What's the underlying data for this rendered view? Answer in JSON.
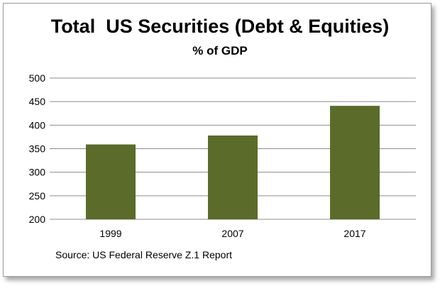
{
  "chart_data": {
    "type": "bar",
    "title": "Total  US Securities (Debt & Equities)",
    "subtitle": "% of GDP",
    "categories": [
      "1999",
      "2007",
      "2017"
    ],
    "values": [
      359,
      378,
      441
    ],
    "ylim": [
      200,
      500
    ],
    "yticks": [
      200,
      250,
      300,
      350,
      400,
      450,
      500
    ],
    "grid": true,
    "bar_color": "#5a6b2a",
    "source": "Source: US Federal Reserve Z.1 Report"
  }
}
